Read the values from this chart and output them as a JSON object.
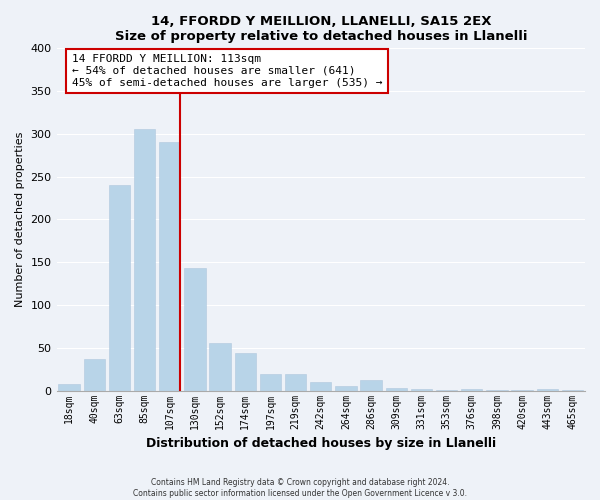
{
  "title": "14, FFORDD Y MEILLION, LLANELLI, SA15 2EX",
  "subtitle": "Size of property relative to detached houses in Llanelli",
  "xlabel": "Distribution of detached houses by size in Llanelli",
  "ylabel": "Number of detached properties",
  "footer_line1": "Contains HM Land Registry data © Crown copyright and database right 2024.",
  "footer_line2": "Contains public sector information licensed under the Open Government Licence v 3.0.",
  "bar_labels": [
    "18sqm",
    "40sqm",
    "63sqm",
    "85sqm",
    "107sqm",
    "130sqm",
    "152sqm",
    "174sqm",
    "197sqm",
    "219sqm",
    "242sqm",
    "264sqm",
    "286sqm",
    "309sqm",
    "331sqm",
    "353sqm",
    "376sqm",
    "398sqm",
    "420sqm",
    "443sqm",
    "465sqm"
  ],
  "bar_values": [
    8,
    37,
    240,
    306,
    291,
    143,
    56,
    44,
    20,
    20,
    10,
    5,
    13,
    3,
    2,
    1,
    2,
    1,
    1,
    2,
    1
  ],
  "bar_color": "#b8d4e8",
  "redline_index": 4,
  "annotation_title": "14 FFORDD Y MEILLION: 113sqm",
  "annotation_line2": "← 54% of detached houses are smaller (641)",
  "annotation_line3": "45% of semi-detached houses are larger (535) →",
  "annotation_box_facecolor": "#ffffff",
  "annotation_border_color": "#cc0000",
  "redline_color": "#cc0000",
  "background_color": "#eef2f8",
  "grid_color": "#ffffff",
  "ylim": [
    0,
    400
  ],
  "yticks": [
    0,
    50,
    100,
    150,
    200,
    250,
    300,
    350,
    400
  ]
}
